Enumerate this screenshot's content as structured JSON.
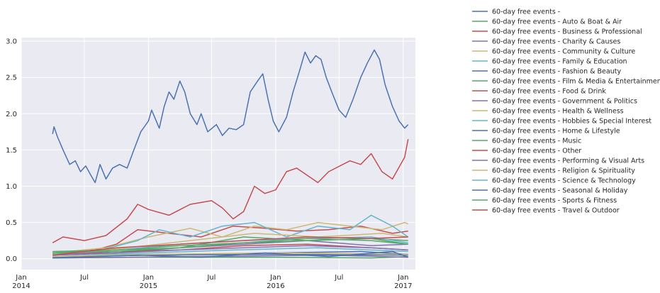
{
  "chart_data": {
    "type": "line",
    "title": "",
    "xlabel": "",
    "ylabel": "",
    "xlim": [
      "2014-01-01",
      "2017-02-05"
    ],
    "ylim": [
      -0.15,
      3.05
    ],
    "grid": true,
    "legend_placement": "outside-right",
    "y_ticks": [
      {
        "value": 0.0,
        "label": "0.0"
      },
      {
        "value": 0.5,
        "label": "0.5"
      },
      {
        "value": 1.0,
        "label": "1.0"
      },
      {
        "value": 1.5,
        "label": "1.5"
      },
      {
        "value": 2.0,
        "label": "2.0"
      },
      {
        "value": 2.5,
        "label": "2.5"
      },
      {
        "value": 3.0,
        "label": "3.0"
      }
    ],
    "x_ticks": [
      {
        "date": "2014-01-01",
        "label": "Jan",
        "sublabel": "2014"
      },
      {
        "date": "2014-07-01",
        "label": "Jul",
        "sublabel": ""
      },
      {
        "date": "2015-01-01",
        "label": "Jan",
        "sublabel": "2015"
      },
      {
        "date": "2015-07-01",
        "label": "Jul",
        "sublabel": ""
      },
      {
        "date": "2016-01-01",
        "label": "Jan",
        "sublabel": "2016"
      },
      {
        "date": "2016-07-01",
        "label": "Jul",
        "sublabel": ""
      },
      {
        "date": "2017-01-01",
        "label": "Jan",
        "sublabel": "2017"
      }
    ],
    "series": [
      {
        "name": "60-day free events -",
        "color": "#4c72b0",
        "points": [
          [
            "2014-04-01",
            1.72
          ],
          [
            "2014-04-05",
            1.82
          ],
          [
            "2014-04-15",
            1.68
          ],
          [
            "2014-05-01",
            1.5
          ],
          [
            "2014-05-20",
            1.3
          ],
          [
            "2014-06-05",
            1.35
          ],
          [
            "2014-06-20",
            1.2
          ],
          [
            "2014-07-05",
            1.28
          ],
          [
            "2014-07-20",
            1.15
          ],
          [
            "2014-08-01",
            1.05
          ],
          [
            "2014-08-15",
            1.3
          ],
          [
            "2014-09-01",
            1.1
          ],
          [
            "2014-09-20",
            1.25
          ],
          [
            "2014-10-10",
            1.3
          ],
          [
            "2014-11-01",
            1.25
          ],
          [
            "2014-11-20",
            1.5
          ],
          [
            "2014-12-10",
            1.75
          ],
          [
            "2015-01-01",
            1.9
          ],
          [
            "2015-01-10",
            2.05
          ],
          [
            "2015-02-01",
            1.8
          ],
          [
            "2015-02-15",
            2.1
          ],
          [
            "2015-03-01",
            2.3
          ],
          [
            "2015-03-15",
            2.2
          ],
          [
            "2015-04-01",
            2.45
          ],
          [
            "2015-04-15",
            2.3
          ],
          [
            "2015-05-01",
            2.0
          ],
          [
            "2015-05-20",
            1.85
          ],
          [
            "2015-06-01",
            2.0
          ],
          [
            "2015-06-20",
            1.75
          ],
          [
            "2015-07-15",
            1.85
          ],
          [
            "2015-08-01",
            1.7
          ],
          [
            "2015-08-20",
            1.8
          ],
          [
            "2015-09-10",
            1.78
          ],
          [
            "2015-10-01",
            1.85
          ],
          [
            "2015-10-20",
            2.3
          ],
          [
            "2015-11-10",
            2.45
          ],
          [
            "2015-11-25",
            2.55
          ],
          [
            "2015-12-10",
            2.2
          ],
          [
            "2015-12-25",
            1.9
          ],
          [
            "2016-01-10",
            1.75
          ],
          [
            "2016-02-01",
            1.95
          ],
          [
            "2016-02-20",
            2.3
          ],
          [
            "2016-03-10",
            2.6
          ],
          [
            "2016-03-25",
            2.85
          ],
          [
            "2016-04-10",
            2.7
          ],
          [
            "2016-04-25",
            2.8
          ],
          [
            "2016-05-10",
            2.75
          ],
          [
            "2016-05-25",
            2.5
          ],
          [
            "2016-06-10",
            2.3
          ],
          [
            "2016-07-01",
            2.05
          ],
          [
            "2016-07-20",
            1.95
          ],
          [
            "2016-08-10",
            2.2
          ],
          [
            "2016-09-01",
            2.5
          ],
          [
            "2016-09-20",
            2.7
          ],
          [
            "2016-10-10",
            2.88
          ],
          [
            "2016-10-25",
            2.75
          ],
          [
            "2016-11-10",
            2.4
          ],
          [
            "2016-12-01",
            2.1
          ],
          [
            "2016-12-20",
            1.9
          ],
          [
            "2017-01-05",
            1.8
          ],
          [
            "2017-01-15",
            1.85
          ]
        ]
      },
      {
        "name": "60-day free events - Auto & Boat & Air",
        "color": "#55a868",
        "points": [
          [
            "2014-04-01",
            0.01
          ],
          [
            "2015-01-01",
            0.02
          ],
          [
            "2016-01-01",
            0.02
          ],
          [
            "2016-10-01",
            0.01
          ],
          [
            "2017-01-15",
            0.03
          ]
        ]
      },
      {
        "name": "60-day free events - Business & Professional",
        "color": "#c44e52",
        "points": [
          [
            "2014-04-01",
            0.08
          ],
          [
            "2014-08-01",
            0.12
          ],
          [
            "2014-10-01",
            0.2
          ],
          [
            "2014-12-01",
            0.4
          ],
          [
            "2015-03-01",
            0.35
          ],
          [
            "2015-06-01",
            0.3
          ],
          [
            "2015-09-01",
            0.45
          ],
          [
            "2015-12-01",
            0.42
          ],
          [
            "2016-03-01",
            0.38
          ],
          [
            "2016-06-01",
            0.4
          ],
          [
            "2016-09-01",
            0.45
          ],
          [
            "2016-12-01",
            0.35
          ],
          [
            "2017-01-15",
            0.38
          ]
        ]
      },
      {
        "name": "60-day free events - Charity & Causes",
        "color": "#8172b2",
        "points": [
          [
            "2014-04-01",
            0.05
          ],
          [
            "2014-10-01",
            0.08
          ],
          [
            "2015-04-01",
            0.15
          ],
          [
            "2015-10-01",
            0.2
          ],
          [
            "2016-04-01",
            0.25
          ],
          [
            "2016-10-01",
            0.18
          ],
          [
            "2017-01-15",
            0.2
          ]
        ]
      },
      {
        "name": "60-day free events - Community & Culture",
        "color": "#ccb974",
        "points": [
          [
            "2014-04-01",
            0.08
          ],
          [
            "2014-09-01",
            0.15
          ],
          [
            "2015-01-01",
            0.3
          ],
          [
            "2015-05-01",
            0.42
          ],
          [
            "2015-08-01",
            0.3
          ],
          [
            "2015-11-01",
            0.45
          ],
          [
            "2016-02-01",
            0.4
          ],
          [
            "2016-05-01",
            0.5
          ],
          [
            "2016-08-01",
            0.45
          ],
          [
            "2016-11-01",
            0.4
          ],
          [
            "2017-01-05",
            0.5
          ],
          [
            "2017-01-15",
            0.48
          ]
        ]
      },
      {
        "name": "60-day free events - Family & Education",
        "color": "#64b5cd",
        "points": [
          [
            "2014-04-01",
            0.05
          ],
          [
            "2014-08-01",
            0.1
          ],
          [
            "2014-12-01",
            0.25
          ],
          [
            "2015-02-01",
            0.4
          ],
          [
            "2015-05-01",
            0.3
          ],
          [
            "2015-08-01",
            0.45
          ],
          [
            "2015-11-01",
            0.5
          ],
          [
            "2016-02-01",
            0.3
          ],
          [
            "2016-05-01",
            0.45
          ],
          [
            "2016-08-01",
            0.4
          ],
          [
            "2016-10-01",
            0.6
          ],
          [
            "2016-12-01",
            0.45
          ],
          [
            "2017-01-15",
            0.3
          ]
        ]
      },
      {
        "name": "60-day free events - Fashion & Beauty",
        "color": "#4c72b0",
        "points": [
          [
            "2014-04-01",
            0.02
          ],
          [
            "2015-01-01",
            0.05
          ],
          [
            "2016-01-01",
            0.08
          ],
          [
            "2016-09-01",
            0.1
          ],
          [
            "2017-01-15",
            0.06
          ]
        ]
      },
      {
        "name": "60-day free events - Film & Media & Entertainment",
        "color": "#55a868",
        "points": [
          [
            "2014-04-01",
            0.1
          ],
          [
            "2014-10-01",
            0.12
          ],
          [
            "2015-04-01",
            0.18
          ],
          [
            "2015-10-01",
            0.22
          ],
          [
            "2016-04-01",
            0.25
          ],
          [
            "2016-10-01",
            0.28
          ],
          [
            "2017-01-15",
            0.2
          ]
        ]
      },
      {
        "name": "60-day free events - Food & Drink",
        "color": "#c44e52",
        "points": [
          [
            "2014-04-01",
            0.05
          ],
          [
            "2014-10-01",
            0.1
          ],
          [
            "2015-04-01",
            0.12
          ],
          [
            "2015-10-01",
            0.18
          ],
          [
            "2016-04-01",
            0.2
          ],
          [
            "2016-10-01",
            0.15
          ],
          [
            "2017-01-15",
            0.12
          ]
        ]
      },
      {
        "name": "60-day free events - Government & Politics",
        "color": "#8172b2",
        "points": [
          [
            "2014-04-01",
            0.01
          ],
          [
            "2015-06-01",
            0.03
          ],
          [
            "2016-06-01",
            0.05
          ],
          [
            "2017-01-15",
            0.02
          ]
        ]
      },
      {
        "name": "60-day free events - Health & Wellness",
        "color": "#ccb974",
        "points": [
          [
            "2014-04-01",
            0.06
          ],
          [
            "2014-11-01",
            0.15
          ],
          [
            "2015-05-01",
            0.25
          ],
          [
            "2015-11-01",
            0.35
          ],
          [
            "2016-05-01",
            0.3
          ],
          [
            "2016-11-01",
            0.35
          ],
          [
            "2017-01-15",
            0.3
          ]
        ]
      },
      {
        "name": "60-day free events - Hobbies & Special Interest",
        "color": "#64b5cd",
        "points": [
          [
            "2014-04-01",
            0.03
          ],
          [
            "2015-01-01",
            0.08
          ],
          [
            "2015-09-01",
            0.12
          ],
          [
            "2016-05-01",
            0.15
          ],
          [
            "2017-01-15",
            0.1
          ]
        ]
      },
      {
        "name": "60-day free events - Home & Lifestyle",
        "color": "#4c72b0",
        "points": [
          [
            "2014-04-01",
            0.02
          ],
          [
            "2015-01-01",
            0.05
          ],
          [
            "2016-01-01",
            0.06
          ],
          [
            "2017-01-15",
            0.05
          ]
        ]
      },
      {
        "name": "60-day free events - Music",
        "color": "#55a868",
        "points": [
          [
            "2014-04-01",
            0.08
          ],
          [
            "2014-10-01",
            0.1
          ],
          [
            "2015-04-01",
            0.15
          ],
          [
            "2015-10-01",
            0.3
          ],
          [
            "2016-04-01",
            0.25
          ],
          [
            "2016-10-01",
            0.28
          ],
          [
            "2017-01-15",
            0.25
          ]
        ]
      },
      {
        "name": "60-day free events - Other",
        "color": "#c44e52",
        "points": [
          [
            "2014-04-01",
            0.22
          ],
          [
            "2014-05-01",
            0.3
          ],
          [
            "2014-07-01",
            0.25
          ],
          [
            "2014-09-01",
            0.32
          ],
          [
            "2014-11-01",
            0.55
          ],
          [
            "2014-12-01",
            0.75
          ],
          [
            "2015-01-01",
            0.68
          ],
          [
            "2015-03-01",
            0.6
          ],
          [
            "2015-05-01",
            0.75
          ],
          [
            "2015-07-01",
            0.8
          ],
          [
            "2015-08-01",
            0.7
          ],
          [
            "2015-09-01",
            0.55
          ],
          [
            "2015-10-01",
            0.65
          ],
          [
            "2015-11-01",
            1.0
          ],
          [
            "2015-12-01",
            0.9
          ],
          [
            "2016-01-01",
            0.95
          ],
          [
            "2016-02-01",
            1.2
          ],
          [
            "2016-03-01",
            1.25
          ],
          [
            "2016-05-01",
            1.05
          ],
          [
            "2016-06-01",
            1.2
          ],
          [
            "2016-08-01",
            1.35
          ],
          [
            "2016-09-01",
            1.3
          ],
          [
            "2016-10-01",
            1.45
          ],
          [
            "2016-11-01",
            1.2
          ],
          [
            "2016-12-01",
            1.1
          ],
          [
            "2017-01-05",
            1.4
          ],
          [
            "2017-01-15",
            1.65
          ]
        ]
      },
      {
        "name": "60-day free events - Performing & Visual Arts",
        "color": "#8172b2",
        "points": [
          [
            "2014-04-01",
            0.05
          ],
          [
            "2014-10-01",
            0.08
          ],
          [
            "2015-04-01",
            0.12
          ],
          [
            "2015-10-01",
            0.15
          ],
          [
            "2016-04-01",
            0.18
          ],
          [
            "2016-10-01",
            0.15
          ],
          [
            "2017-01-15",
            0.12
          ]
        ]
      },
      {
        "name": "60-day free events - Religion & Spirituality",
        "color": "#ccb974",
        "points": [
          [
            "2014-04-01",
            0.03
          ],
          [
            "2015-01-01",
            0.06
          ],
          [
            "2016-01-01",
            0.08
          ],
          [
            "2017-01-15",
            0.06
          ]
        ]
      },
      {
        "name": "60-day free events - Science & Technology",
        "color": "#64b5cd",
        "points": [
          [
            "2014-04-01",
            0.06
          ],
          [
            "2014-10-01",
            0.12
          ],
          [
            "2015-04-01",
            0.2
          ],
          [
            "2015-10-01",
            0.25
          ],
          [
            "2016-04-01",
            0.28
          ],
          [
            "2016-10-01",
            0.3
          ],
          [
            "2017-01-15",
            0.22
          ]
        ]
      },
      {
        "name": "60-day free events - Seasonal & Holiday",
        "color": "#4c72b0",
        "points": [
          [
            "2014-04-01",
            0.01
          ],
          [
            "2014-12-01",
            0.05
          ],
          [
            "2015-06-01",
            0.02
          ],
          [
            "2015-12-01",
            0.08
          ],
          [
            "2016-06-01",
            0.03
          ],
          [
            "2016-12-01",
            0.1
          ],
          [
            "2017-01-15",
            0.02
          ]
        ]
      },
      {
        "name": "60-day free events - Sports & Fitness",
        "color": "#55a868",
        "points": [
          [
            "2014-04-01",
            0.08
          ],
          [
            "2014-10-01",
            0.12
          ],
          [
            "2015-04-01",
            0.15
          ],
          [
            "2015-10-01",
            0.22
          ],
          [
            "2016-04-01",
            0.28
          ],
          [
            "2016-10-01",
            0.25
          ],
          [
            "2017-01-15",
            0.2
          ]
        ]
      },
      {
        "name": "60-day free events - Travel & Outdoor",
        "color": "#c44e52",
        "points": [
          [
            "2014-04-01",
            0.05
          ],
          [
            "2014-10-01",
            0.15
          ],
          [
            "2015-04-01",
            0.2
          ],
          [
            "2015-10-01",
            0.25
          ],
          [
            "2016-04-01",
            0.3
          ],
          [
            "2016-10-01",
            0.28
          ],
          [
            "2017-01-15",
            0.3
          ]
        ]
      }
    ]
  }
}
